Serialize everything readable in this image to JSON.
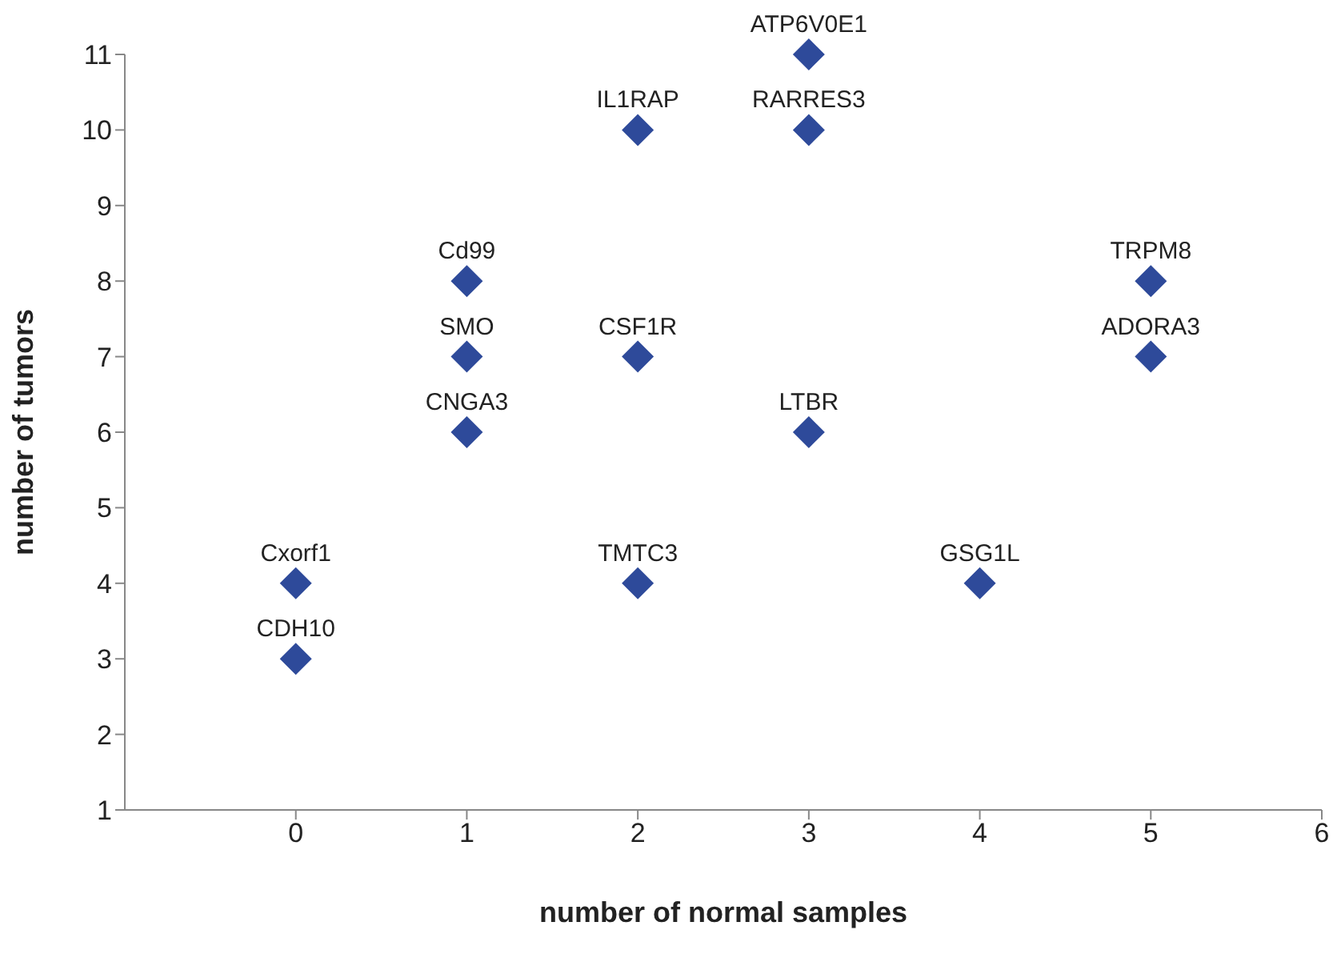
{
  "chart_data": {
    "type": "scatter",
    "xlabel": "number of normal samples",
    "ylabel": "number of tumors",
    "x": [
      0,
      0,
      1,
      1,
      1,
      2,
      2,
      2,
      3,
      3,
      3,
      4,
      5,
      5
    ],
    "series": [
      {
        "color": "#2e4a9a",
        "values": [
          4,
          3,
          8,
          7,
          6,
          10,
          7,
          4,
          11,
          10,
          6,
          4,
          8,
          7
        ]
      }
    ],
    "xlim": [
      -1,
      6
    ],
    "xticks": [
      0,
      1,
      2,
      3,
      4,
      5,
      6
    ],
    "ylim": [
      1,
      11
    ],
    "yticks": [
      1,
      2,
      3,
      4,
      5,
      6,
      7,
      8,
      9,
      10,
      11
    ],
    "marker": "diamond",
    "annotations": [
      {
        "text": "Cxorf1",
        "x": 0,
        "y": 4
      },
      {
        "text": "CDH10",
        "x": 0,
        "y": 3
      },
      {
        "text": "Cd99",
        "x": 1,
        "y": 8
      },
      {
        "text": "SMO",
        "x": 1,
        "y": 7
      },
      {
        "text": "CNGA3",
        "x": 1,
        "y": 6
      },
      {
        "text": "IL1RAP",
        "x": 2,
        "y": 10
      },
      {
        "text": "CSF1R",
        "x": 2,
        "y": 7
      },
      {
        "text": "TMTC3",
        "x": 2,
        "y": 4
      },
      {
        "text": "ATP6V0E1",
        "x": 3,
        "y": 11
      },
      {
        "text": "RARRES3",
        "x": 3,
        "y": 10
      },
      {
        "text": "LTBR",
        "x": 3,
        "y": 6
      },
      {
        "text": "GSG1L",
        "x": 4,
        "y": 4
      },
      {
        "text": "TRPM8",
        "x": 5,
        "y": 8
      },
      {
        "text": "ADORA3",
        "x": 5,
        "y": 7
      }
    ]
  }
}
